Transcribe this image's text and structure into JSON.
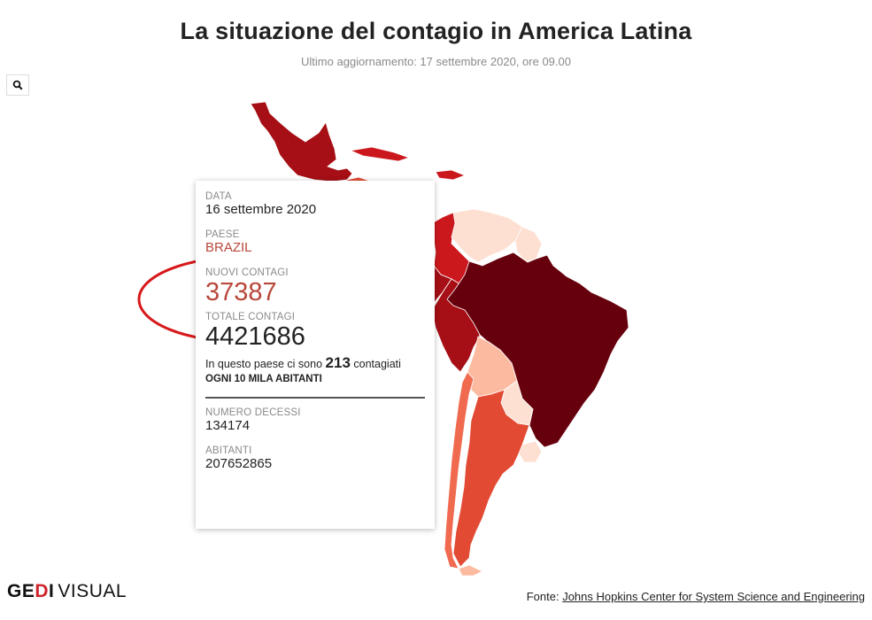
{
  "header": {
    "title": "La situazione del contagio in America Latina",
    "subtitle": "Ultimo aggiornamento: 17 settembre 2020, ore 09.00"
  },
  "toolbar": {
    "search_icon": "search-icon"
  },
  "tooltip": {
    "date_label": "DATA",
    "date_value": "16 settembre 2020",
    "country_label": "PAESE",
    "country_value": "BRAZIL",
    "new_cases_label": "NUOVI CONTAGI",
    "new_cases_value": "37387",
    "total_cases_label": "TOTALE CONTAGI",
    "total_cases_value": "4421686",
    "incidence_pre": "In questo paese ci sono",
    "incidence_value": "213",
    "incidence_post": "contagiati",
    "incidence_line2": "OGNI 10 MILA ABITANTI",
    "deaths_label": "NUMERO DECESSI",
    "deaths_value": "134174",
    "population_label": "ABITANTI",
    "population_value": "207652865"
  },
  "map": {
    "colors": {
      "darkest": "#67000d",
      "dark": "#a50f15",
      "red": "#cb181d",
      "mid": "#e34a33",
      "salmon": "#f06a4f",
      "light": "#fcbba1",
      "pale": "#fde0d2"
    },
    "highlighted_country": "Brazil"
  },
  "footer": {
    "logo_gedi_1": "GE",
    "logo_gedi_2": "D",
    "logo_gedi_3": "I",
    "logo_visual": "VISUAL",
    "source_label": "Fonte:",
    "source_link": "Johns Hopkins Center for System Science and Engineering"
  }
}
